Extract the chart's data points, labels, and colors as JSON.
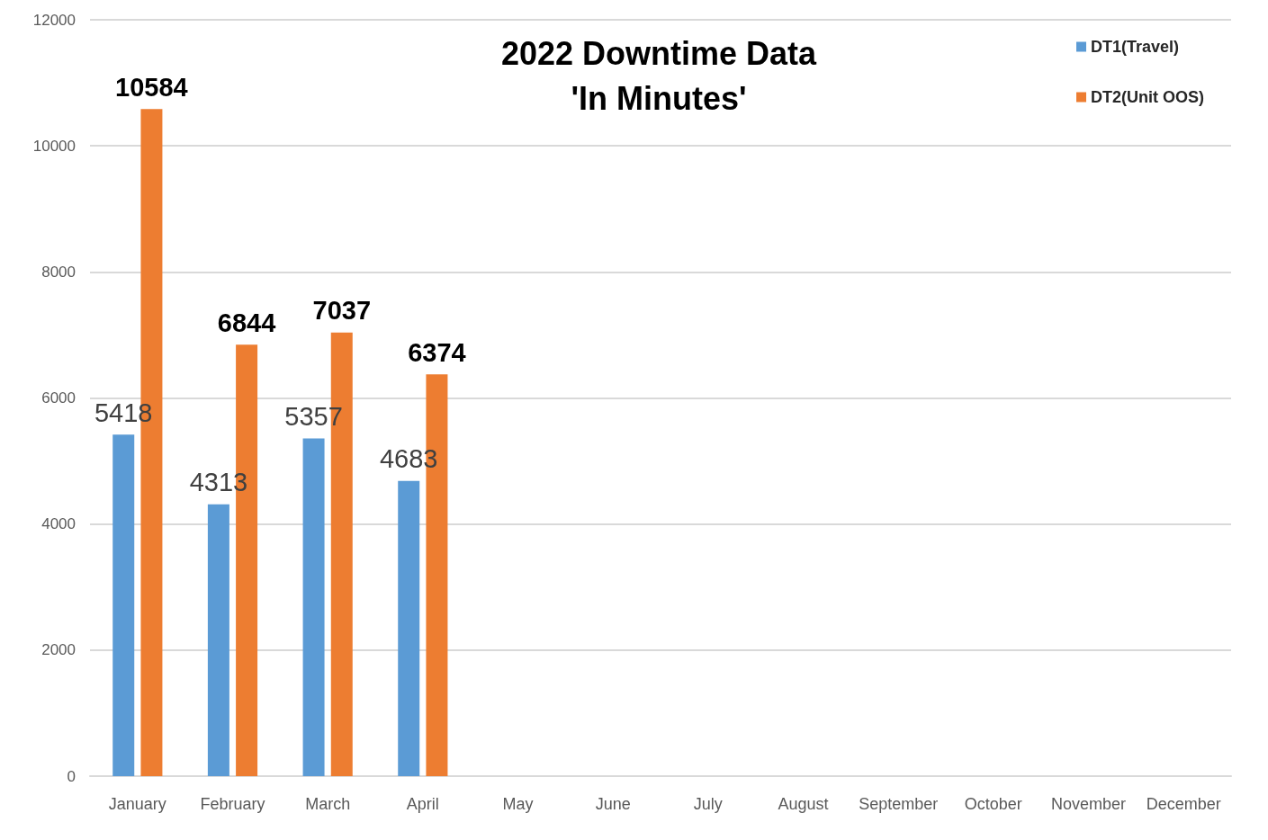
{
  "chart_data": {
    "type": "bar",
    "title": "2022 Downtime Data",
    "subtitle": "'In Minutes'",
    "categories": [
      "January",
      "February",
      "March",
      "April",
      "May",
      "June",
      "July",
      "August",
      "September",
      "October",
      "November",
      "December"
    ],
    "series": [
      {
        "name": "DT1(Travel)",
        "color": "#5b9bd5",
        "values": [
          5418,
          4313,
          5357,
          4683,
          null,
          null,
          null,
          null,
          null,
          null,
          null,
          null
        ]
      },
      {
        "name": "DT2(Unit OOS)",
        "color": "#ed7d31",
        "values": [
          10584,
          6844,
          7037,
          6374,
          null,
          null,
          null,
          null,
          null,
          null,
          null,
          null
        ]
      }
    ],
    "ylim": [
      0,
      12000
    ],
    "yticks": [
      0,
      2000,
      4000,
      6000,
      8000,
      10000,
      12000
    ],
    "grid": "y",
    "legend": "top right",
    "data_labels": true
  }
}
